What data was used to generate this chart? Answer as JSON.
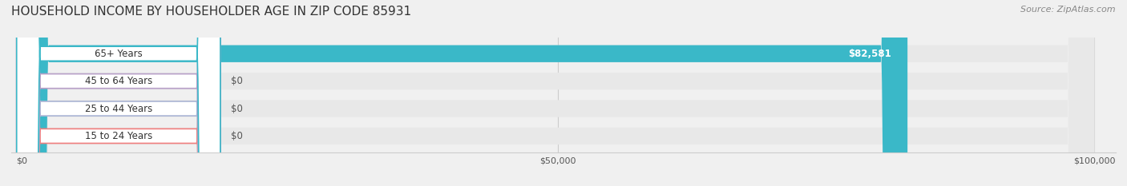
{
  "title": "HOUSEHOLD INCOME BY HOUSEHOLDER AGE IN ZIP CODE 85931",
  "source": "Source: ZipAtlas.com",
  "categories": [
    "15 to 24 Years",
    "25 to 44 Years",
    "45 to 64 Years",
    "65+ Years"
  ],
  "values": [
    0,
    0,
    0,
    82581
  ],
  "max_val": 100000,
  "bar_colors": [
    "#f08080",
    "#aab4d4",
    "#b8a0c8",
    "#3ab8c8"
  ],
  "bar_labels": [
    "$0",
    "$0",
    "$0",
    "$82,581"
  ],
  "x_ticks": [
    0,
    50000,
    100000
  ],
  "x_tick_labels": [
    "$0",
    "$50,000",
    "$100,000"
  ],
  "bg_color": "#f0f0f0",
  "bar_bg_color": "#e8e8e8",
  "title_fontsize": 11,
  "source_fontsize": 8,
  "label_fontsize": 8.5,
  "tick_fontsize": 8
}
